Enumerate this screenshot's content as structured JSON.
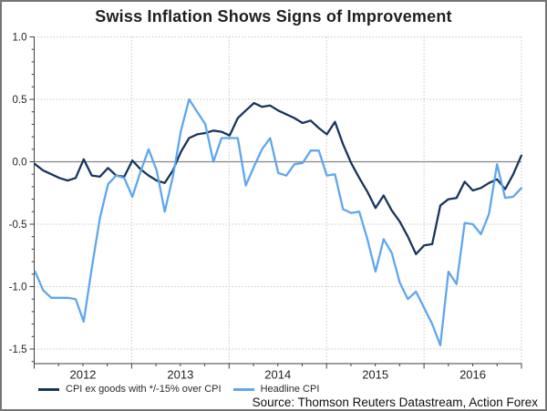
{
  "title": "Swiss Inflation Shows Signs of Improvement",
  "source": "Source: Thomson Reuters Datastream, Action Forex",
  "legend": [
    {
      "label": "CPI ex goods with */-15% over CPI",
      "color": "#17365d"
    },
    {
      "label": "Headline CPI",
      "color": "#5ea7ee"
    }
  ],
  "colors": {
    "series_dark": "#17365d",
    "series_light": "#5ea7ee",
    "gridline": "#c8c8c8",
    "zero_line": "#858585",
    "axis": "#3f3f3f",
    "text": "#222222",
    "frame_border": "#757575"
  },
  "chart_data": {
    "type": "line",
    "title": "Swiss Inflation Shows Signs of Improvement",
    "frequency": "monthly",
    "x_tick_labels": [
      "2012",
      "2013",
      "2014",
      "2015",
      "2016"
    ],
    "y_ticks": [
      1.0,
      0.5,
      0.0,
      -0.5,
      -1.0,
      -1.5
    ],
    "ylim": [
      -1.62,
      1.0
    ],
    "grid": "dotted",
    "legend_position": "bottom-left",
    "series": [
      {
        "name": "CPI ex goods with */-15% over CPI",
        "color": "#17365d",
        "values": [
          -0.02,
          -0.07,
          -0.1,
          -0.13,
          -0.15,
          -0.13,
          0.02,
          -0.11,
          -0.12,
          -0.05,
          -0.11,
          -0.12,
          0.01,
          -0.06,
          -0.11,
          -0.15,
          -0.17,
          -0.07,
          0.08,
          0.19,
          0.22,
          0.23,
          0.25,
          0.24,
          0.21,
          0.35,
          0.41,
          0.47,
          0.44,
          0.45,
          0.41,
          0.38,
          0.35,
          0.31,
          0.33,
          0.27,
          0.22,
          0.32,
          0.14,
          -0.01,
          -0.13,
          -0.24,
          -0.37,
          -0.27,
          -0.39,
          -0.48,
          -0.6,
          -0.74,
          -0.67,
          -0.66,
          -0.35,
          -0.3,
          -0.29,
          -0.16,
          -0.23,
          -0.21,
          -0.17,
          -0.14,
          -0.22,
          -0.1,
          0.05
        ]
      },
      {
        "name": "Headline CPI",
        "color": "#5ea7ee",
        "values": [
          -0.88,
          -1.03,
          -1.09,
          -1.09,
          -1.09,
          -1.1,
          -1.28,
          -0.85,
          -0.45,
          -0.18,
          -0.11,
          -0.13,
          -0.28,
          -0.08,
          0.1,
          -0.07,
          -0.4,
          -0.12,
          0.25,
          0.5,
          0.4,
          0.3,
          0.0,
          0.19,
          0.19,
          0.19,
          -0.19,
          -0.04,
          0.1,
          0.19,
          -0.09,
          -0.11,
          -0.02,
          -0.01,
          0.09,
          0.09,
          -0.11,
          -0.1,
          -0.38,
          -0.41,
          -0.4,
          -0.62,
          -0.88,
          -0.62,
          -0.73,
          -0.97,
          -1.1,
          -1.04,
          -1.17,
          -1.3,
          -1.47,
          -0.88,
          -0.98,
          -0.49,
          -0.5,
          -0.58,
          -0.42,
          -0.02,
          -0.29,
          -0.28,
          -0.21
        ]
      }
    ]
  }
}
